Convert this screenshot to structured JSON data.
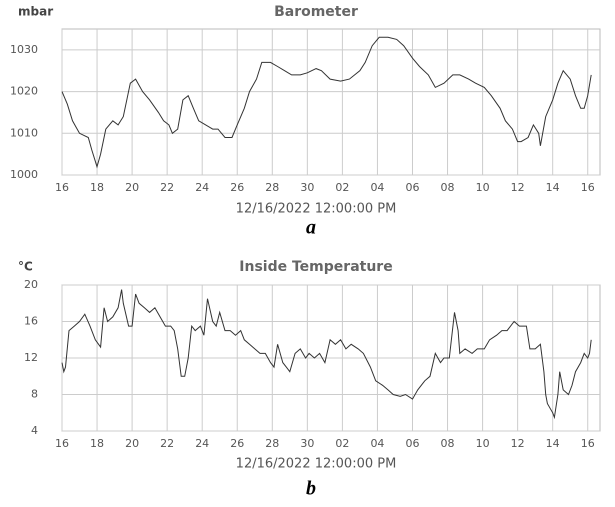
{
  "chart_data": [
    {
      "type": "line",
      "title": "Barometer",
      "ylabel": "mbar",
      "xlabel": "12/16/2022 12:00:00 PM",
      "caption": "a",
      "color": "#333333",
      "grid": true,
      "xlim": [
        0,
        30.7
      ],
      "ylim": [
        1000,
        1035
      ],
      "xticks": [
        {
          "value": 0,
          "label": "16"
        },
        {
          "value": 2,
          "label": "18"
        },
        {
          "value": 4,
          "label": "20"
        },
        {
          "value": 6,
          "label": "22"
        },
        {
          "value": 8,
          "label": "24"
        },
        {
          "value": 10,
          "label": "26"
        },
        {
          "value": 12,
          "label": "28"
        },
        {
          "value": 14,
          "label": "30"
        },
        {
          "value": 16,
          "label": "02"
        },
        {
          "value": 18,
          "label": "04"
        },
        {
          "value": 20,
          "label": "06"
        },
        {
          "value": 22,
          "label": "08"
        },
        {
          "value": 24,
          "label": "10"
        },
        {
          "value": 26,
          "label": "12"
        },
        {
          "value": 28,
          "label": "14"
        },
        {
          "value": 30,
          "label": "16"
        }
      ],
      "yticks": [
        1000,
        1010,
        1020,
        1030
      ],
      "x": [
        0,
        0.3,
        0.6,
        1.0,
        1.5,
        1.7,
        2.0,
        2.2,
        2.5,
        2.9,
        3.2,
        3.5,
        3.9,
        4.2,
        4.6,
        5.0,
        5.5,
        5.8,
        6.1,
        6.3,
        6.6,
        6.9,
        7.2,
        7.5,
        7.8,
        8.2,
        8.6,
        8.9,
        9.3,
        9.7,
        10.0,
        10.4,
        10.7,
        11.1,
        11.4,
        11.9,
        12.3,
        12.7,
        13.1,
        13.6,
        14.0,
        14.5,
        14.8,
        15.3,
        15.9,
        16.4,
        17.0,
        17.3,
        17.7,
        18.1,
        18.6,
        19.1,
        19.5,
        20.0,
        20.4,
        20.9,
        21.3,
        21.8,
        22.3,
        22.7,
        23.2,
        23.6,
        24.1,
        24.5,
        25.0,
        25.3,
        25.7,
        26.0,
        26.2,
        26.6,
        26.9,
        27.2,
        27.3,
        27.6,
        28.0,
        28.3,
        28.6,
        29.0,
        29.3,
        29.6,
        29.8,
        30.0,
        30.2
      ],
      "values": [
        1020,
        1017,
        1013,
        1010,
        1009,
        1006,
        1002,
        1005,
        1011,
        1013,
        1012,
        1014,
        1022,
        1023,
        1020,
        1018,
        1015,
        1013,
        1012,
        1010,
        1011,
        1018,
        1019,
        1016,
        1013,
        1012,
        1011,
        1011,
        1009,
        1009,
        1012,
        1016,
        1020,
        1023,
        1027,
        1027,
        1026,
        1025,
        1024,
        1024,
        1024.5,
        1025.5,
        1025,
        1023,
        1022.5,
        1023,
        1025,
        1027,
        1031,
        1033,
        1033,
        1032.5,
        1031,
        1028,
        1026,
        1024,
        1021,
        1022,
        1024,
        1024,
        1023,
        1022,
        1021,
        1019,
        1016,
        1013,
        1011,
        1008,
        1008,
        1009,
        1012,
        1010,
        1007,
        1014,
        1018,
        1022,
        1025,
        1023,
        1019,
        1016,
        1016,
        1019,
        1024
      ]
    },
    {
      "type": "line",
      "title": "Inside Temperature",
      "ylabel": "°C",
      "xlabel": "12/16/2022 12:00:00 PM",
      "caption": "b",
      "color": "#333333",
      "grid": true,
      "xlim": [
        0,
        30.7
      ],
      "ylim": [
        4,
        20
      ],
      "xticks": [
        {
          "value": 0,
          "label": "16"
        },
        {
          "value": 2,
          "label": "18"
        },
        {
          "value": 4,
          "label": "20"
        },
        {
          "value": 6,
          "label": "22"
        },
        {
          "value": 8,
          "label": "24"
        },
        {
          "value": 10,
          "label": "26"
        },
        {
          "value": 12,
          "label": "28"
        },
        {
          "value": 14,
          "label": "30"
        },
        {
          "value": 16,
          "label": "02"
        },
        {
          "value": 18,
          "label": "04"
        },
        {
          "value": 20,
          "label": "06"
        },
        {
          "value": 22,
          "label": "08"
        },
        {
          "value": 24,
          "label": "10"
        },
        {
          "value": 26,
          "label": "12"
        },
        {
          "value": 28,
          "label": "14"
        },
        {
          "value": 30,
          "label": "16"
        }
      ],
      "yticks": [
        4,
        8,
        12,
        16,
        20
      ],
      "x": [
        0,
        0.1,
        0.2,
        0.4,
        0.7,
        1.0,
        1.3,
        1.6,
        1.9,
        2.2,
        2.4,
        2.6,
        2.9,
        3.2,
        3.4,
        3.5,
        3.8,
        4.0,
        4.2,
        4.4,
        4.7,
        5.0,
        5.3,
        5.6,
        5.9,
        6.2,
        6.4,
        6.6,
        6.8,
        7.0,
        7.2,
        7.4,
        7.6,
        7.9,
        8.1,
        8.3,
        8.6,
        8.8,
        9.0,
        9.3,
        9.6,
        9.9,
        10.2,
        10.4,
        10.7,
        11.0,
        11.3,
        11.6,
        11.9,
        12.1,
        12.3,
        12.6,
        12.8,
        13.0,
        13.3,
        13.6,
        13.9,
        14.1,
        14.4,
        14.7,
        15.0,
        15.3,
        15.6,
        15.9,
        16.2,
        16.5,
        16.9,
        17.2,
        17.6,
        17.9,
        18.3,
        18.6,
        18.9,
        19.3,
        19.6,
        20.0,
        20.3,
        20.7,
        21.0,
        21.3,
        21.6,
        21.8,
        22.1,
        22.4,
        22.6,
        22.7,
        23.0,
        23.4,
        23.7,
        24.1,
        24.4,
        24.8,
        25.1,
        25.4,
        25.8,
        26.1,
        26.5,
        26.7,
        27.0,
        27.3,
        27.5,
        27.6,
        27.7,
        28.0,
        28.1,
        28.3,
        28.4,
        28.6,
        28.9,
        29.1,
        29.3,
        29.6,
        29.8,
        30.0,
        30.1,
        30.2
      ],
      "values": [
        11.5,
        10.5,
        11,
        15,
        15.5,
        16,
        16.8,
        15.5,
        14,
        13.2,
        17.5,
        16,
        16.5,
        17.5,
        19.5,
        18,
        15.5,
        15.5,
        19,
        18,
        17.5,
        17,
        17.5,
        16.5,
        15.5,
        15.5,
        15,
        13,
        10,
        10,
        12,
        15.5,
        15,
        15.5,
        14.5,
        18.5,
        16,
        15.5,
        17,
        15,
        15,
        14.5,
        15,
        14,
        13.5,
        13,
        12.5,
        12.5,
        11.5,
        11,
        13.5,
        11.5,
        11,
        10.5,
        12.5,
        13,
        12,
        12.5,
        12,
        12.5,
        11.5,
        14,
        13.5,
        14,
        13,
        13.5,
        13,
        12.5,
        11,
        9.5,
        9,
        8.5,
        8,
        7.8,
        8,
        7.5,
        8.5,
        9.5,
        10,
        12.5,
        11.5,
        12,
        12,
        17,
        15,
        12.5,
        13,
        12.5,
        13,
        13,
        14,
        14.5,
        15,
        15,
        16,
        15.5,
        15.5,
        13,
        13,
        13.5,
        10.5,
        8,
        7,
        6,
        5.5,
        8,
        10.5,
        8.5,
        8,
        9,
        10.5,
        11.5,
        12.5,
        12,
        12.5,
        14
      ]
    }
  ]
}
